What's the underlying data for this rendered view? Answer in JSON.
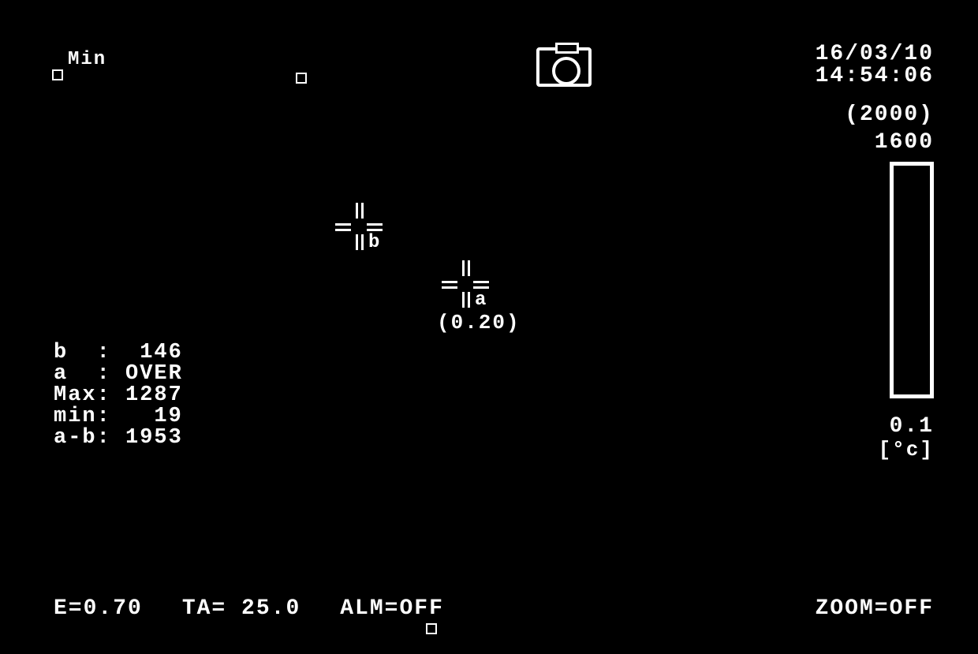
{
  "colors": {
    "background": "#000000",
    "foreground": "#ffffff"
  },
  "topLeft": {
    "label": "Min"
  },
  "datetime": {
    "date": "16/03/10",
    "time": "14:54:06"
  },
  "scale": {
    "max_paren": "(2000)",
    "max": "1600",
    "min": "0.1",
    "unit": "[°c]"
  },
  "crosshairs": {
    "b": {
      "label": "b"
    },
    "a": {
      "label": "a",
      "value": "(0.20)"
    }
  },
  "readings": {
    "b": {
      "label": "b  :",
      "value": " 146"
    },
    "a": {
      "label": "a  :",
      "value": "OVER"
    },
    "max": {
      "label": "Max:",
      "value": "1287"
    },
    "min": {
      "label": "min:",
      "value": "  19"
    },
    "ab": {
      "label": "a-b:",
      "value": "1953"
    }
  },
  "bottom": {
    "emissivity": "E=0.70",
    "ta": "TA= 25.0",
    "alm": "ALM=OFF",
    "zoom": "ZOOM=OFF"
  }
}
